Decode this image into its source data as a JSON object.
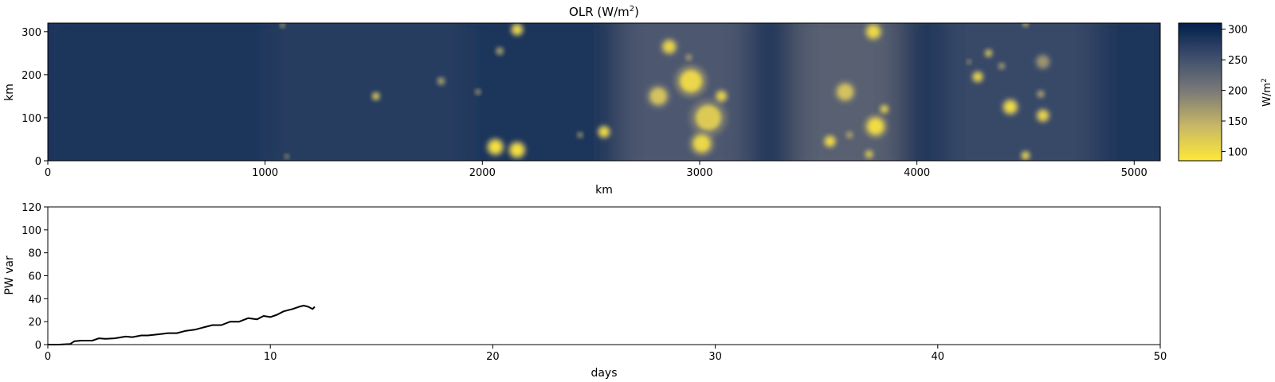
{
  "chart_data": [
    {
      "type": "heatmap",
      "title": "OLR (W/m",
      "title_sup": "2",
      "title_end": ")",
      "xlabel": "km",
      "ylabel": "km",
      "xlim": [
        0,
        5120
      ],
      "ylim": [
        0,
        320
      ],
      "x_ticks": [
        "0",
        "1000",
        "2000",
        "3000",
        "4000",
        "5000"
      ],
      "x_tick_values": [
        0,
        1000,
        2000,
        3000,
        4000,
        5000
      ],
      "y_ticks": [
        "0",
        "100",
        "200",
        "300"
      ],
      "y_tick_values": [
        0,
        100,
        200,
        300
      ],
      "colormap": "cividis_r",
      "colorbar": {
        "label": "W/m",
        "label_sup": "2",
        "range": [
          85,
          310
        ],
        "ticks": [
          "100",
          "150",
          "200",
          "250",
          "300"
        ],
        "tick_values": [
          100,
          150,
          200,
          250,
          300
        ],
        "color_low": "#fee838",
        "color_mid": "#7c7b78",
        "color_high": "#00204c"
      },
      "background_bands": [
        {
          "x": [
            0,
            1100
          ],
          "value": 285
        },
        {
          "x": [
            1100,
            2000
          ],
          "value": 275
        },
        {
          "x": [
            2000,
            2700
          ],
          "value": 285
        },
        {
          "x": [
            2700,
            3300
          ],
          "value": 240
        },
        {
          "x": [
            3300,
            3500
          ],
          "value": 285
        },
        {
          "x": [
            3500,
            4000
          ],
          "value": 230
        },
        {
          "x": [
            4000,
            4200
          ],
          "value": 285
        },
        {
          "x": [
            4200,
            4900
          ],
          "value": 260
        },
        {
          "x": [
            4900,
            5120
          ],
          "value": 285
        }
      ],
      "cells": [
        {
          "x": 1080,
          "y": 315,
          "r": 8,
          "value": 120
        },
        {
          "x": 1510,
          "y": 150,
          "r": 14,
          "value": 110
        },
        {
          "x": 1810,
          "y": 185,
          "r": 14,
          "value": 150
        },
        {
          "x": 1980,
          "y": 160,
          "r": 10,
          "value": 150
        },
        {
          "x": 2060,
          "y": 32,
          "r": 30,
          "value": 95
        },
        {
          "x": 2160,
          "y": 25,
          "r": 30,
          "value": 95
        },
        {
          "x": 2160,
          "y": 305,
          "r": 22,
          "value": 105
        },
        {
          "x": 2080,
          "y": 255,
          "r": 14,
          "value": 150
        },
        {
          "x": 2560,
          "y": 67,
          "r": 22,
          "value": 100
        },
        {
          "x": 2450,
          "y": 60,
          "r": 10,
          "value": 150
        },
        {
          "x": 2860,
          "y": 265,
          "r": 28,
          "value": 110
        },
        {
          "x": 2810,
          "y": 150,
          "r": 40,
          "value": 130
        },
        {
          "x": 2960,
          "y": 185,
          "r": 52,
          "value": 105
        },
        {
          "x": 3040,
          "y": 100,
          "r": 60,
          "value": 120
        },
        {
          "x": 3010,
          "y": 40,
          "r": 40,
          "value": 105
        },
        {
          "x": 3100,
          "y": 150,
          "r": 22,
          "value": 110
        },
        {
          "x": 2950,
          "y": 240,
          "r": 12,
          "value": 150
        },
        {
          "x": 3670,
          "y": 160,
          "r": 38,
          "value": 130
        },
        {
          "x": 3810,
          "y": 80,
          "r": 38,
          "value": 100
        },
        {
          "x": 3600,
          "y": 45,
          "r": 22,
          "value": 100
        },
        {
          "x": 3800,
          "y": 300,
          "r": 30,
          "value": 105
        },
        {
          "x": 3850,
          "y": 120,
          "r": 16,
          "value": 110
        },
        {
          "x": 3780,
          "y": 15,
          "r": 16,
          "value": 120
        },
        {
          "x": 3690,
          "y": 60,
          "r": 14,
          "value": 150
        },
        {
          "x": 4280,
          "y": 195,
          "r": 20,
          "value": 105
        },
        {
          "x": 4430,
          "y": 125,
          "r": 28,
          "value": 100
        },
        {
          "x": 4580,
          "y": 105,
          "r": 24,
          "value": 110
        },
        {
          "x": 4570,
          "y": 155,
          "r": 14,
          "value": 150
        },
        {
          "x": 4500,
          "y": 12,
          "r": 16,
          "value": 105
        },
        {
          "x": 4330,
          "y": 250,
          "r": 14,
          "value": 120
        },
        {
          "x": 4390,
          "y": 220,
          "r": 12,
          "value": 150
        },
        {
          "x": 4500,
          "y": 318,
          "r": 10,
          "value": 120
        },
        {
          "x": 4240,
          "y": 230,
          "r": 8,
          "value": 150
        },
        {
          "x": 4580,
          "y": 230,
          "r": 30,
          "value": 175
        },
        {
          "x": 1100,
          "y": 10,
          "r": 8,
          "value": 150
        }
      ]
    },
    {
      "type": "line",
      "title": "",
      "xlabel": "days",
      "ylabel": "PW var",
      "xlim": [
        0,
        50
      ],
      "ylim": [
        0,
        120
      ],
      "x_ticks": [
        "0",
        "10",
        "20",
        "30",
        "40",
        "50"
      ],
      "x_tick_values": [
        0,
        10,
        20,
        30,
        40,
        50
      ],
      "y_ticks": [
        "0",
        "20",
        "40",
        "60",
        "80",
        "100",
        "120"
      ],
      "y_tick_values": [
        0,
        20,
        40,
        60,
        80,
        100,
        120
      ],
      "series": [
        {
          "color": "#000000",
          "x": [
            0,
            0.5,
            1.0,
            1.2,
            1.5,
            2.0,
            2.3,
            2.6,
            3.0,
            3.5,
            3.8,
            4.2,
            4.5,
            5.0,
            5.4,
            5.8,
            6.2,
            6.6,
            7.0,
            7.4,
            7.8,
            8.2,
            8.6,
            9.0,
            9.4,
            9.7,
            10.0,
            10.3,
            10.6,
            11.0,
            11.3,
            11.5,
            11.7,
            11.9,
            12.0
          ],
          "y": [
            0,
            0,
            0.5,
            3,
            3.5,
            3.5,
            5.5,
            5,
            5.5,
            7,
            6.5,
            8,
            8,
            9,
            10,
            10,
            12,
            13,
            15,
            17,
            17,
            20,
            20,
            23,
            22,
            25,
            24,
            26,
            29,
            31,
            33,
            34,
            33,
            31,
            33
          ]
        }
      ]
    }
  ]
}
